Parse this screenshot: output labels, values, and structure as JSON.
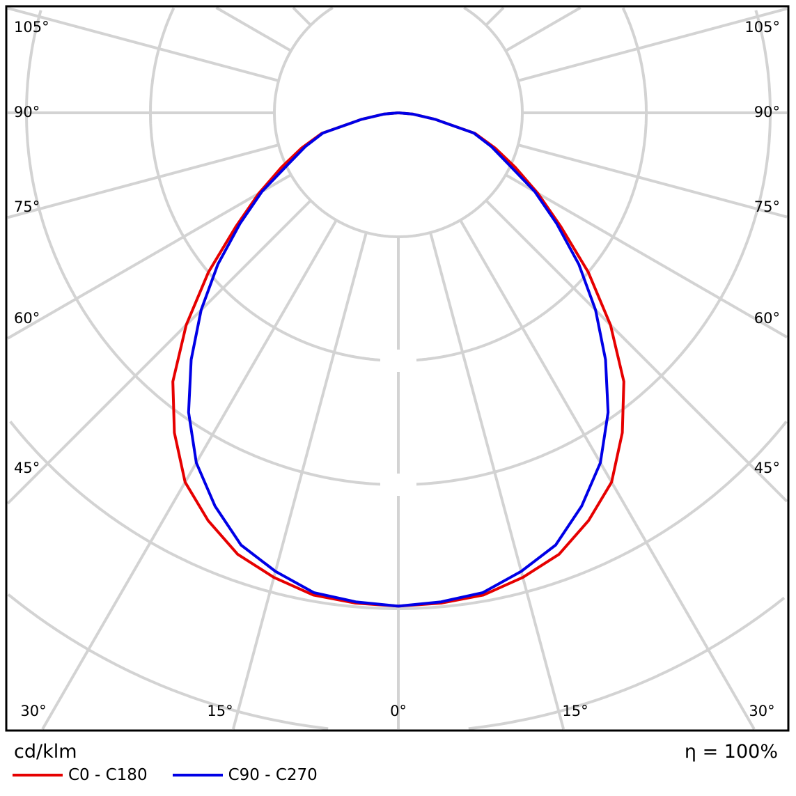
{
  "chart_data": {
    "type": "polar-line",
    "unit_label": "cd/klm",
    "efficiency_label": "η = 100%",
    "angle_labels_left": [
      "105°",
      "90°",
      "75°",
      "60°",
      "45°"
    ],
    "angle_labels_right": [
      "105°",
      "90°",
      "75°",
      "60°",
      "45°"
    ],
    "angle_labels_bottom": [
      "30°",
      "15°",
      "0°",
      "15°",
      "30°"
    ],
    "grid": true,
    "radial_grid_rings": 6,
    "angular_grid_step_deg": 15,
    "radial_scale_note": "intensity in grid-ring units (ring values not printed)",
    "gamma_deg": [
      0,
      5,
      10,
      15,
      20,
      25,
      30,
      35,
      40,
      45,
      50,
      55,
      60,
      65,
      70,
      75,
      80,
      85,
      90
    ],
    "series": [
      {
        "name": "C0 - C180",
        "color": "#e60000",
        "symmetric": true,
        "values": [
          3.98,
          3.97,
          3.95,
          3.88,
          3.79,
          3.63,
          3.44,
          3.15,
          2.83,
          2.42,
          2.0,
          1.6,
          1.3,
          1.04,
          0.83,
          0.64,
          0.3,
          0.12,
          0
        ]
      },
      {
        "name": "C90 - C270",
        "color": "#0000e6",
        "symmetric": true,
        "values": [
          3.98,
          3.96,
          3.93,
          3.83,
          3.71,
          3.5,
          3.26,
          2.95,
          2.6,
          2.25,
          1.9,
          1.56,
          1.27,
          0.98,
          0.8,
          0.63,
          0.3,
          0.12,
          0
        ]
      }
    ],
    "legend_position": "bottom-left"
  }
}
